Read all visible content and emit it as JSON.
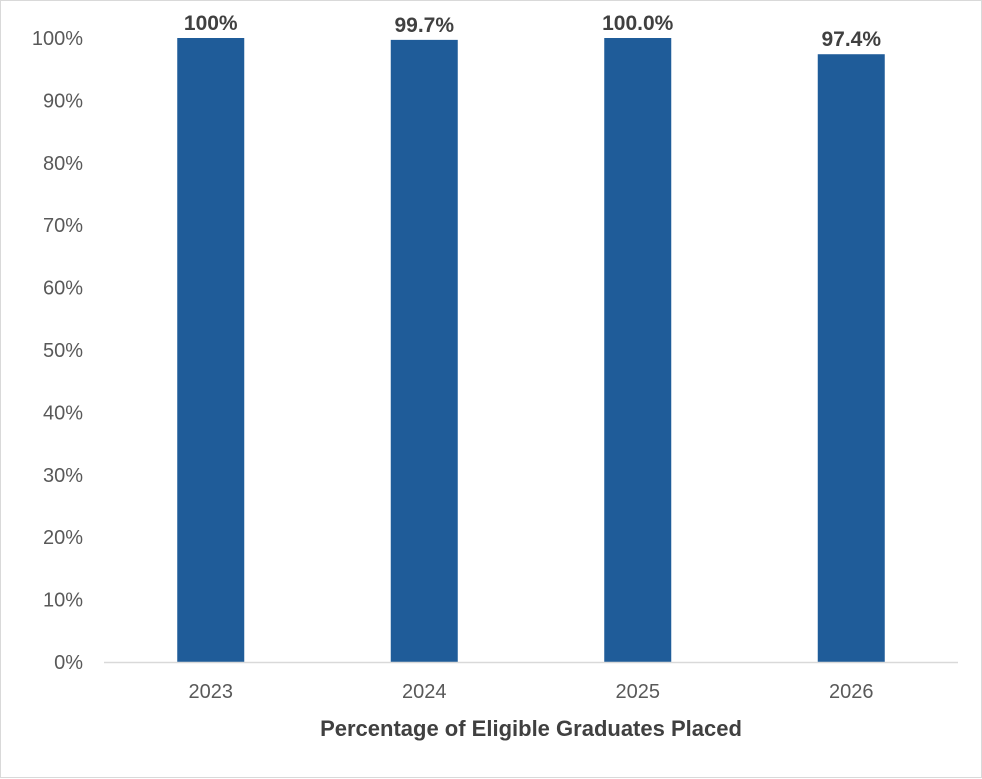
{
  "chart_data": {
    "type": "bar",
    "categories": [
      "2023",
      "2024",
      "2025",
      "2026"
    ],
    "values": [
      100,
      99.7,
      100.0,
      97.4
    ],
    "data_labels": [
      "100%",
      "99.7%",
      "100.0%",
      "97.4%"
    ],
    "title": "",
    "xlabel": "Percentage of Eligible Graduates Placed",
    "ylabel": "",
    "ylim": [
      0,
      100
    ],
    "y_ticks": [
      "0%",
      "10%",
      "20%",
      "30%",
      "40%",
      "50%",
      "60%",
      "70%",
      "80%",
      "90%",
      "100%"
    ],
    "grid": false,
    "legend": "none",
    "bar_color": "#1f5c99",
    "axis_color": "#d9d9d9"
  }
}
